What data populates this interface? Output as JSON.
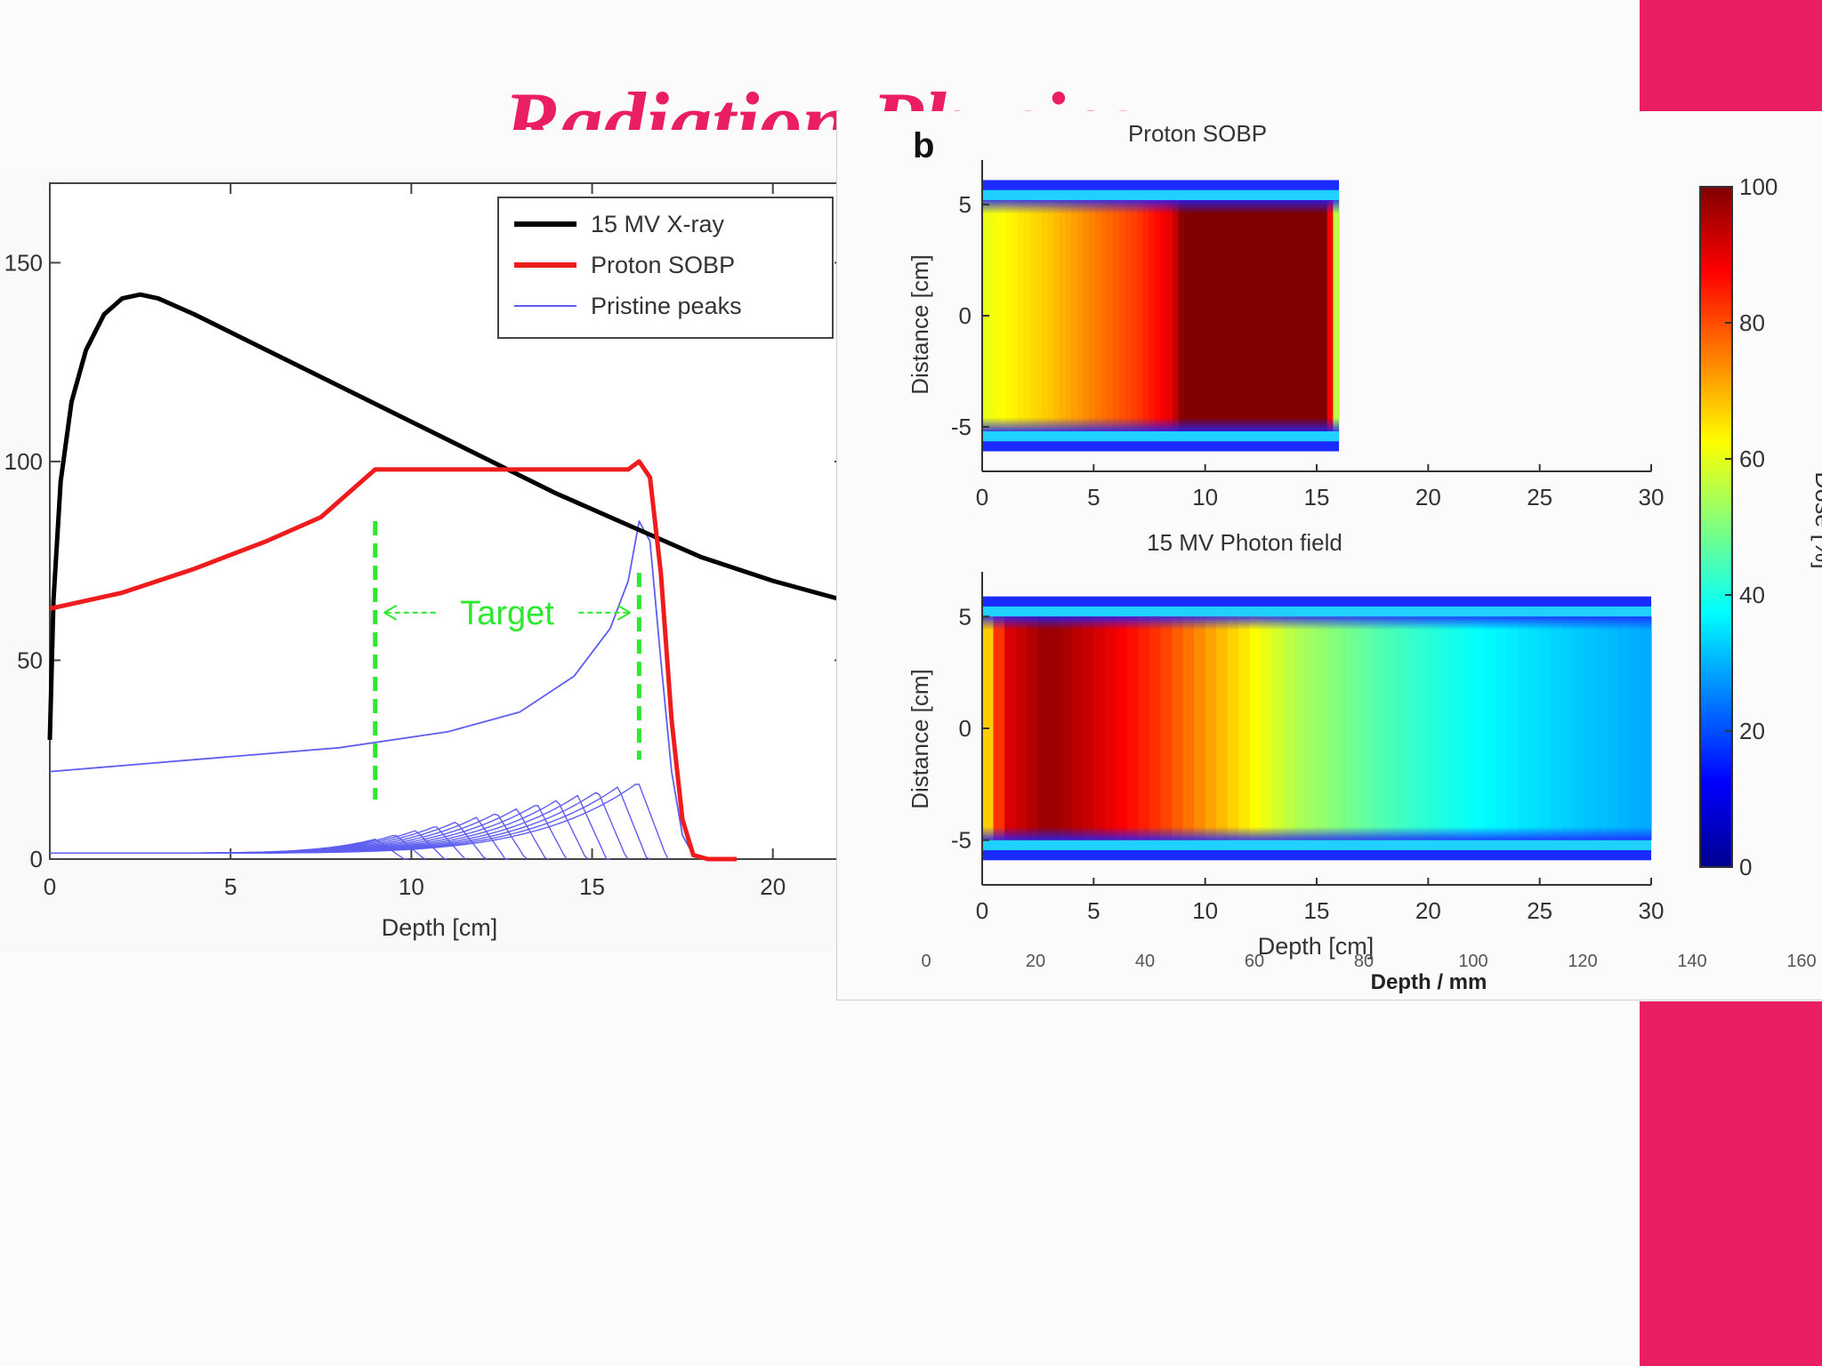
{
  "slide": {
    "title": "Radiation Physics",
    "accent_color": "#e91e63",
    "background_color": "#fcfbfc"
  },
  "chart_data": [
    {
      "type": "line",
      "title": "",
      "xlabel": "Depth [cm]",
      "ylabel": "",
      "xlim": [
        0,
        22
      ],
      "ylim": [
        0,
        170
      ],
      "xticks": [
        0,
        5,
        10,
        15,
        20
      ],
      "yticks": [
        0,
        50,
        100,
        150
      ],
      "grid": false,
      "legend": "top-right",
      "annotation": "Target",
      "target_range": [
        9,
        16.3
      ],
      "series": [
        {
          "name": "15 MV X-ray",
          "color": "#000000",
          "x": [
            0,
            0.1,
            0.3,
            0.6,
            1.0,
            1.5,
            2.0,
            2.5,
            3.0,
            4,
            6,
            8,
            10,
            12,
            14,
            16,
            18,
            20,
            22
          ],
          "y": [
            30,
            65,
            95,
            115,
            128,
            137,
            141,
            142,
            141,
            137,
            128,
            119,
            110,
            101,
            92,
            84,
            76,
            70,
            65
          ]
        },
        {
          "name": "Proton SOBP",
          "color": "#ee1c1c",
          "x": [
            0,
            2,
            4,
            6,
            7.5,
            8.5,
            9,
            12,
            15,
            16,
            16.3,
            16.6,
            16.9,
            17.2,
            17.5,
            17.8,
            18.2,
            19
          ],
          "y": [
            63,
            67,
            73,
            80,
            86,
            94,
            98,
            98,
            98,
            98,
            100,
            96,
            72,
            35,
            10,
            1,
            0,
            0
          ]
        },
        {
          "name": "Pristine peaks",
          "color": "#5e5ef0",
          "x": [
            0,
            4,
            8,
            11,
            13,
            14.5,
            15.5,
            16.0,
            16.3,
            16.6,
            16.9,
            17.2,
            17.5,
            17.8,
            18.2
          ],
          "y": [
            22,
            25,
            28,
            32,
            37,
            46,
            58,
            70,
            85,
            80,
            50,
            22,
            6,
            1,
            0
          ]
        }
      ]
    },
    {
      "type": "heatmap",
      "panel_label": "b",
      "title": "Proton SOBP",
      "xlabel": "",
      "ylabel": "Distance [cm]",
      "xlim": [
        0,
        30
      ],
      "ylim": [
        -7,
        7
      ],
      "xticks": [
        0,
        5,
        10,
        15,
        20,
        25,
        30
      ],
      "yticks": [
        -5,
        0,
        5
      ],
      "field_width_cm": [
        -5.2,
        5.2
      ],
      "range_cm": 16.0,
      "depth_dose_percent": {
        "x": [
          0,
          3,
          5,
          7,
          8.5,
          9,
          15.5,
          16
        ],
        "y": [
          60,
          68,
          75,
          82,
          90,
          100,
          100,
          40
        ]
      }
    },
    {
      "type": "heatmap",
      "title": "15 MV Photon field",
      "xlabel": "Depth [cm]",
      "ylabel": "Distance [cm]",
      "xlim": [
        0,
        30
      ],
      "ylim": [
        -7,
        7
      ],
      "xticks": [
        0,
        5,
        10,
        15,
        20,
        25,
        30
      ],
      "yticks": [
        -5,
        0,
        5
      ],
      "field_width_cm": [
        -5,
        5
      ],
      "depth_dose_percent": {
        "x": [
          0,
          1,
          3,
          5,
          8,
          11,
          14,
          18,
          22,
          26,
          30
        ],
        "y": [
          60,
          90,
          98,
          92,
          82,
          68,
          55,
          45,
          38,
          33,
          29
        ]
      }
    },
    {
      "type": "colorbar",
      "label": "Dose [%]",
      "range": [
        0,
        100
      ],
      "ticks": [
        0,
        20,
        40,
        60,
        80,
        100
      ]
    }
  ],
  "background_axis": {
    "xlabel": "Depth / mm",
    "ticks": [
      "0",
      "20",
      "40",
      "60",
      "80",
      "100",
      "120",
      "140",
      "160"
    ]
  }
}
